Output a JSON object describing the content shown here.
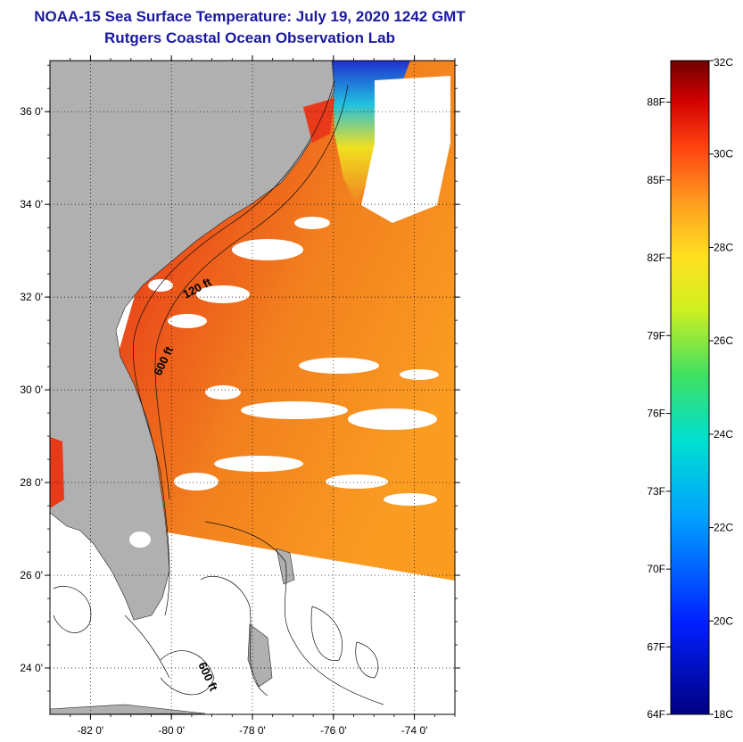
{
  "title": "NOAA-15 Sea Surface Temperature:  July 19, 2020 1242 GMT",
  "subtitle": "Rutgers Coastal Ocean Observation Lab",
  "map": {
    "lat_labels": [
      "24 0'",
      "26 0'",
      "28 0'",
      "30 0'",
      "32 0'",
      "34 0'",
      "36 0'"
    ],
    "lat_values": [
      24,
      26,
      28,
      30,
      32,
      34,
      36
    ],
    "lon_labels": [
      "-82 0'",
      "-80 0'",
      "-78 0'",
      "-76 0'",
      "-74 0'"
    ],
    "lon_values": [
      -82,
      -80,
      -78,
      -76,
      -74
    ],
    "lat_range": [
      23,
      37.1
    ],
    "lon_range": [
      -83,
      -73
    ],
    "contour_labels": [
      "120 ft",
      "600 ft",
      "600 ft"
    ],
    "colors": {
      "land": "#b0b0b0",
      "sst_warm": "#e8391a",
      "sst_mid": "#f07a1c",
      "sst_cool": "#ffa020",
      "cloud": "#ffffff"
    }
  },
  "colorbar": {
    "celsius_labels": [
      "32C",
      "30C",
      "28C",
      "26C",
      "24C",
      "22C",
      "20C",
      "18C"
    ],
    "celsius_values": [
      32,
      30,
      28,
      26,
      24,
      22,
      20,
      18
    ],
    "fahrenheit_labels": [
      "88F",
      "85F",
      "82F",
      "79F",
      "76F",
      "73F",
      "70F",
      "67F",
      "64F"
    ],
    "fahrenheit_values": [
      88,
      85,
      82,
      79,
      76,
      73,
      70,
      67,
      64
    ],
    "range_celsius": [
      18,
      32
    ]
  }
}
